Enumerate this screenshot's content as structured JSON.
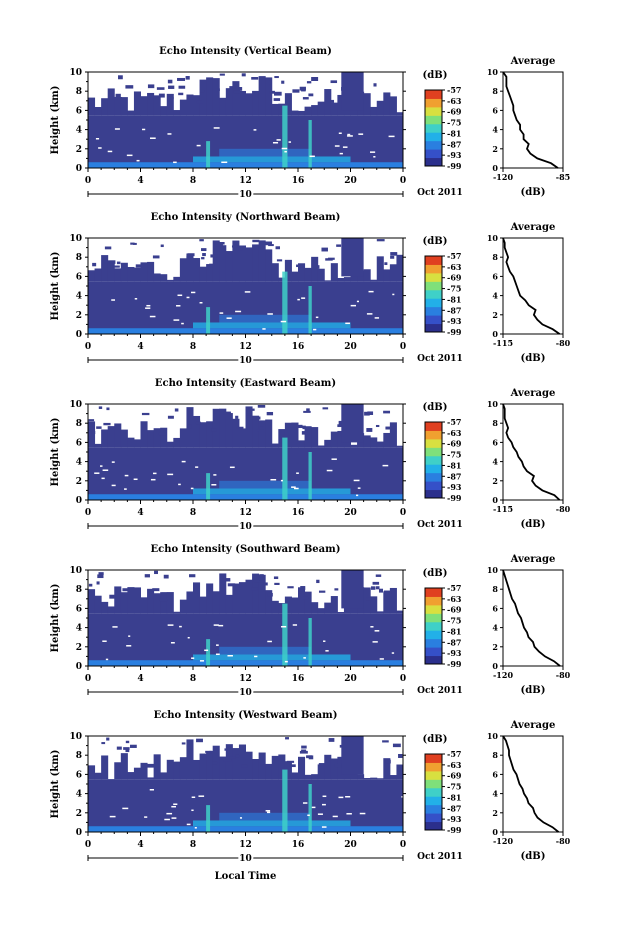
{
  "figure": {
    "xlabel": "Local Time",
    "date_label": "Oct 2011"
  },
  "chart_data": [
    {
      "type": "heatmap",
      "title": "Echo Intensity (Vertical Beam)",
      "ylabel": "Height (km)",
      "ylim": [
        0,
        10
      ],
      "y_ticks": [
        "0",
        "2",
        "4",
        "6",
        "8",
        "10"
      ],
      "xlim": [
        0,
        24
      ],
      "x_ticks": [
        "0",
        "4",
        "8",
        "12",
        "16",
        "20",
        "0"
      ],
      "day_label": "10",
      "colorbar": {
        "unit": "(dB)",
        "ticks": [
          "-57",
          "-63",
          "-69",
          "-75",
          "-81",
          "-87",
          "-93",
          "-99"
        ]
      },
      "profile": {
        "title": "Average",
        "xlabel": "(dB)",
        "x_ticks": [
          "-120",
          "-85"
        ],
        "xlim": [
          -120,
          -85
        ],
        "y": [
          0,
          0.5,
          1,
          1.5,
          2,
          2.5,
          3,
          3.5,
          4,
          4.5,
          5,
          5.5,
          6,
          6.5,
          7,
          7.5,
          8,
          8.5,
          9,
          9.5,
          10
        ],
        "x": [
          -88,
          -92,
          -100,
          -104,
          -106,
          -105,
          -108,
          -108,
          -110,
          -110,
          -112,
          -113,
          -114,
          -114,
          -115,
          -116,
          -117,
          -118,
          -118,
          -118,
          -120
        ]
      }
    },
    {
      "type": "heatmap",
      "title": "Echo Intensity (Northward Beam)",
      "ylabel": "Height (km)",
      "ylim": [
        0,
        10
      ],
      "y_ticks": [
        "0",
        "2",
        "4",
        "6",
        "8",
        "10"
      ],
      "xlim": [
        0,
        24
      ],
      "x_ticks": [
        "0",
        "4",
        "8",
        "12",
        "16",
        "20",
        "0"
      ],
      "day_label": "10",
      "colorbar": {
        "unit": "(dB)",
        "ticks": [
          "-57",
          "-63",
          "-69",
          "-75",
          "-81",
          "-87",
          "-93",
          "-99"
        ]
      },
      "profile": {
        "title": "Average",
        "xlabel": "(dB)",
        "x_ticks": [
          "-115",
          "-80"
        ],
        "xlim": [
          -115,
          -80
        ],
        "y": [
          0,
          0.5,
          1,
          1.5,
          2,
          2.5,
          3,
          3.5,
          4,
          4.5,
          5,
          5.5,
          6,
          6.5,
          7,
          7.5,
          8,
          8.5,
          9,
          9.5,
          10
        ],
        "x": [
          -82,
          -86,
          -92,
          -95,
          -97,
          -96,
          -100,
          -102,
          -105,
          -106,
          -107,
          -108,
          -109,
          -111,
          -112,
          -113,
          -112,
          -113,
          -114,
          -114,
          -115
        ]
      }
    },
    {
      "type": "heatmap",
      "title": "Echo Intensity (Eastward Beam)",
      "ylabel": "Height (km)",
      "ylim": [
        0,
        10
      ],
      "y_ticks": [
        "0",
        "2",
        "4",
        "6",
        "8",
        "10"
      ],
      "xlim": [
        0,
        24
      ],
      "x_ticks": [
        "0",
        "4",
        "8",
        "12",
        "16",
        "20",
        "0"
      ],
      "day_label": "10",
      "colorbar": {
        "unit": "(dB)",
        "ticks": [
          "-57",
          "-63",
          "-69",
          "-75",
          "-81",
          "-87",
          "-93",
          "-99"
        ]
      },
      "profile": {
        "title": "Average",
        "xlabel": "(dB)",
        "x_ticks": [
          "-115",
          "-80"
        ],
        "xlim": [
          -115,
          -80
        ],
        "y": [
          0,
          0.5,
          1,
          1.5,
          2,
          2.5,
          3,
          3.5,
          4,
          4.5,
          5,
          5.5,
          6,
          6.5,
          7,
          7.5,
          8,
          8.5,
          9,
          9.5,
          10
        ],
        "x": [
          -82,
          -85,
          -92,
          -96,
          -98,
          -97,
          -101,
          -103,
          -104,
          -106,
          -107,
          -109,
          -110,
          -112,
          -113,
          -112,
          -113,
          -114,
          -114,
          -114,
          -115
        ]
      }
    },
    {
      "type": "heatmap",
      "title": "Echo Intensity (Southward Beam)",
      "ylabel": "Height (km)",
      "ylim": [
        0,
        10
      ],
      "y_ticks": [
        "0",
        "2",
        "4",
        "6",
        "8",
        "10"
      ],
      "xlim": [
        0,
        24
      ],
      "x_ticks": [
        "0",
        "4",
        "8",
        "12",
        "16",
        "20",
        "0"
      ],
      "day_label": "10",
      "colorbar": {
        "unit": "(dB)",
        "ticks": [
          "-57",
          "-63",
          "-69",
          "-75",
          "-81",
          "-87",
          "-93",
          "-99"
        ]
      },
      "profile": {
        "title": "Average",
        "xlabel": "(dB)",
        "x_ticks": [
          "-120",
          "-80"
        ],
        "xlim": [
          -120,
          -80
        ],
        "y": [
          0,
          0.5,
          1,
          1.5,
          2,
          2.5,
          3,
          3.5,
          4,
          4.5,
          5,
          5.5,
          6,
          6.5,
          7,
          7.5,
          8,
          8.5,
          9,
          9.5,
          10
        ],
        "x": [
          -82,
          -86,
          -92,
          -96,
          -99,
          -100,
          -103,
          -104,
          -106,
          -107,
          -108,
          -110,
          -111,
          -112,
          -114,
          -115,
          -116,
          -117,
          -118,
          -119,
          -120
        ]
      }
    },
    {
      "type": "heatmap",
      "title": "Echo Intensity (Westward Beam)",
      "ylabel": "Height (km)",
      "ylim": [
        0,
        10
      ],
      "y_ticks": [
        "0",
        "2",
        "4",
        "6",
        "8",
        "10"
      ],
      "xlim": [
        0,
        24
      ],
      "x_ticks": [
        "0",
        "4",
        "8",
        "12",
        "16",
        "20",
        "0"
      ],
      "day_label": "10",
      "colorbar": {
        "unit": "(dB)",
        "ticks": [
          "-57",
          "-63",
          "-69",
          "-75",
          "-81",
          "-87",
          "-93",
          "-99"
        ]
      },
      "profile": {
        "title": "Average",
        "xlabel": "(dB)",
        "x_ticks": [
          "-120",
          "-80"
        ],
        "xlim": [
          -120,
          -80
        ],
        "y": [
          0,
          0.5,
          1,
          1.5,
          2,
          2.5,
          3,
          3.5,
          4,
          4.5,
          5,
          5.5,
          6,
          6.5,
          7,
          7.5,
          8,
          8.5,
          9,
          9.5,
          10
        ],
        "x": [
          -83,
          -87,
          -93,
          -97,
          -99,
          -100,
          -103,
          -104,
          -106,
          -107,
          -109,
          -110,
          -111,
          -113,
          -114,
          -115,
          -116,
          -116,
          -117,
          -118,
          -120
        ]
      }
    }
  ],
  "colors": {
    "background": "#3a3f8f",
    "colormap": [
      "#2b2f8c",
      "#3550c8",
      "#2a7fe0",
      "#22b0e8",
      "#3fd0c8",
      "#7fe07a",
      "#d8e040",
      "#f0a030",
      "#e04020"
    ]
  }
}
